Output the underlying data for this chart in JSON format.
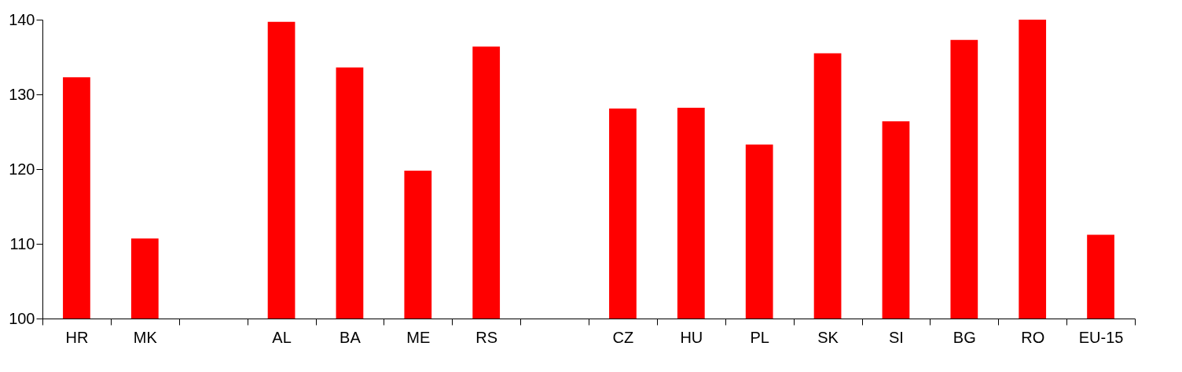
{
  "chart_data": {
    "type": "bar",
    "categories": [
      "HR",
      "MK",
      null,
      "AL",
      "BA",
      "ME",
      "RS",
      null,
      "CZ",
      "HU",
      "PL",
      "SK",
      "SI",
      "BG",
      "RO",
      "EU-15"
    ],
    "values": [
      132.3,
      110.7,
      null,
      139.7,
      133.6,
      119.8,
      136.4,
      null,
      128.1,
      128.2,
      123.3,
      135.5,
      126.4,
      137.3,
      140,
      111.2
    ],
    "color": "#ff0000",
    "ylim": [
      100,
      140
    ],
    "yticks": [
      100,
      110,
      120,
      130,
      140
    ],
    "grid": false
  }
}
